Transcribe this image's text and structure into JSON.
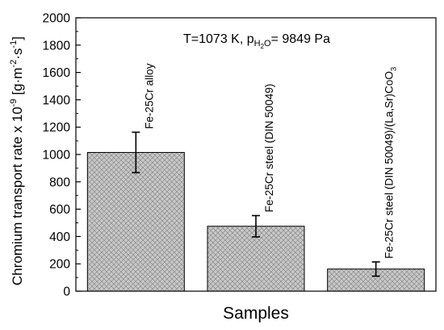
{
  "chart_data": {
    "type": "bar",
    "title": "",
    "annotation": {
      "prefix": "T=1073 K, p",
      "sub": "H",
      "subsub": "2",
      "sub2": "O",
      "suffix": "= 9849 Pa"
    },
    "xlabel": "Samples",
    "ylabel": {
      "main": "Chromium transport rate x 10",
      "exp": "-9",
      "unit_open": " [g·m",
      "unit_exp1": "-2",
      "unit_mid": "·s",
      "unit_exp2": "-1",
      "unit_close": "]"
    },
    "ylim": [
      0,
      2000
    ],
    "yticks": [
      0,
      200,
      400,
      600,
      800,
      1000,
      1200,
      1400,
      1600,
      1800,
      2000
    ],
    "ytick_labels": [
      "0",
      "200",
      "400",
      "600",
      "800",
      "1000",
      "1200",
      "1400",
      "1600",
      "1800",
      "2000"
    ],
    "series": [
      {
        "values": [
          1015,
          475,
          162
        ],
        "errors": [
          148,
          78,
          52
        ]
      }
    ],
    "bar_labels": [
      {
        "text": "Fe-25Cr alloy"
      },
      {
        "text": "Fe-25Cr steel (DIN 50049)"
      },
      {
        "text": "Fe-25Cr steel (DIN 50049)/(La,Sr)CoO",
        "sub": "3"
      }
    ],
    "colors": {
      "bar_fill": "#c8c8c8",
      "hatch": "#8a8a8a",
      "edge": "#000000"
    },
    "grid": false,
    "legend": "none"
  }
}
